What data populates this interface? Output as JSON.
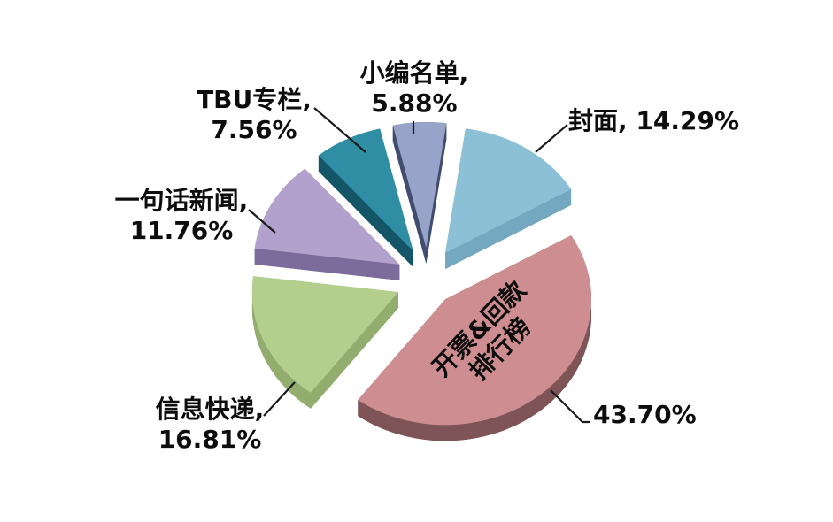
{
  "chart_data": {
    "type": "pie",
    "title": "",
    "three_d": true,
    "exploded": true,
    "start_angle_deg": 8,
    "legend": "none",
    "background_color": "#ffffff",
    "label_color": "#0d0d0d",
    "slices": [
      {
        "name": "封面",
        "value": 14.29,
        "color": "#8BC0D7",
        "side_color": "#74A7C0",
        "explode": 36
      },
      {
        "name": "开票&回款排行榜",
        "value": 43.7,
        "color": "#CE8D90",
        "side_color": "#7E5456",
        "explode": 30
      },
      {
        "name": "信息快递",
        "value": 16.81,
        "color": "#B4CE8E",
        "side_color": "#93AD6E",
        "explode": 36
      },
      {
        "name": "一句话新闻",
        "value": 11.76,
        "color": "#B1A1CC",
        "side_color": "#7C6C9C",
        "explode": 36
      },
      {
        "name": "TBU专栏",
        "value": 7.56,
        "color": "#2F8EA4",
        "side_color": "#145667",
        "explode": 36
      },
      {
        "name": "小编名单",
        "value": 5.88,
        "color": "#97A3C9",
        "side_color": "#414D6E",
        "explode": 36
      }
    ],
    "callouts": {
      "fengmian": {
        "line1": "封面, 14.29%",
        "line2": ""
      },
      "xiaobian": {
        "line1": "小编名单,",
        "line2": "5.88%"
      },
      "tbu": {
        "line1": "TBU专栏,",
        "line2": "7.56%"
      },
      "yijuhua": {
        "line1": "一句话新闻,",
        "line2": "11.76%"
      },
      "xinxi": {
        "line1": "信息快递,",
        "line2": "16.81%"
      },
      "pink_pct": {
        "line1": "43.70%",
        "line2": ""
      },
      "pink_inner": {
        "line1": "开票&回款",
        "line2": "排行榜"
      }
    }
  }
}
